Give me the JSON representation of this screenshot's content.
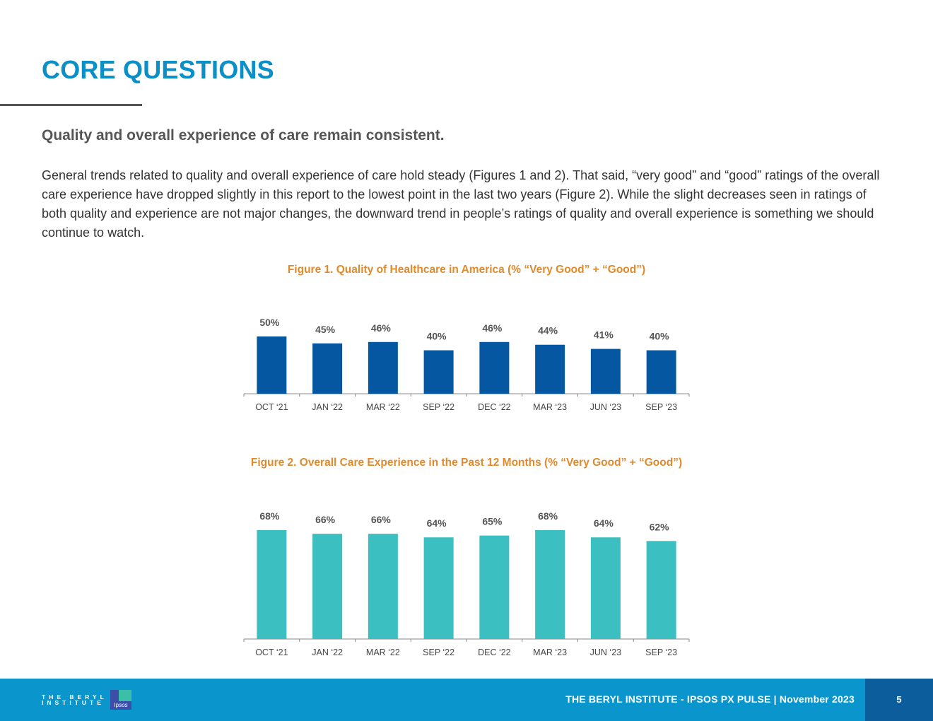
{
  "header": {
    "title": "CORE QUESTIONS",
    "subtitle": "Quality and overall experience of care remain consistent.",
    "body": "General trends related to quality and overall experience of care hold steady (Figures 1 and 2). That said, “very good” and “good” ratings of the overall care experience have dropped slightly in this report to the lowest point in the last two years (Figure 2). While the slight decreases seen in ratings of both quality and experience are not major changes, the downward trend in people’s ratings of quality and overall experience is something we should continue to watch."
  },
  "chart_data": [
    {
      "type": "bar",
      "title": "Figure 1. Quality of Healthcare in America (% “Very Good” + “Good”)",
      "categories": [
        "OCT ‘21",
        "JAN ‘22",
        "MAR ‘22",
        "SEP ‘22",
        "DEC ‘22",
        "MAR ‘23",
        "JUN ‘23",
        "SEP ‘23"
      ],
      "values": [
        50,
        45,
        46,
        40,
        46,
        44,
        41,
        40
      ],
      "value_labels": [
        "50%",
        "45%",
        "46%",
        "40%",
        "46%",
        "44%",
        "41%",
        "40%"
      ],
      "color": "#0657a1",
      "xlabel": "",
      "ylabel": "",
      "ylim": [
        28,
        50
      ]
    },
    {
      "type": "bar",
      "title": "Figure 2. Overall Care Experience in the Past 12 Months (% “Very Good” + “Good”)",
      "categories": [
        "OCT ‘21",
        "JAN ‘22",
        "MAR ‘22",
        "SEP ‘22",
        "DEC ‘22",
        "MAR ‘23",
        "JUN ‘23",
        "SEP ‘23"
      ],
      "values": [
        68,
        66,
        66,
        64,
        65,
        68,
        64,
        62
      ],
      "value_labels": [
        "68%",
        "66%",
        "66%",
        "64%",
        "65%",
        "68%",
        "64%",
        "62%"
      ],
      "color": "#3bbfc1",
      "xlabel": "",
      "ylabel": "",
      "ylim": [
        50,
        68
      ]
    }
  ],
  "footer": {
    "logo_text": "THE BERYL INSTITUTE",
    "ipsos_logo": "Ipsos",
    "text": "THE BERYL INSTITUTE - IPSOS PX PULSE | November 2023",
    "page_number": "5"
  }
}
